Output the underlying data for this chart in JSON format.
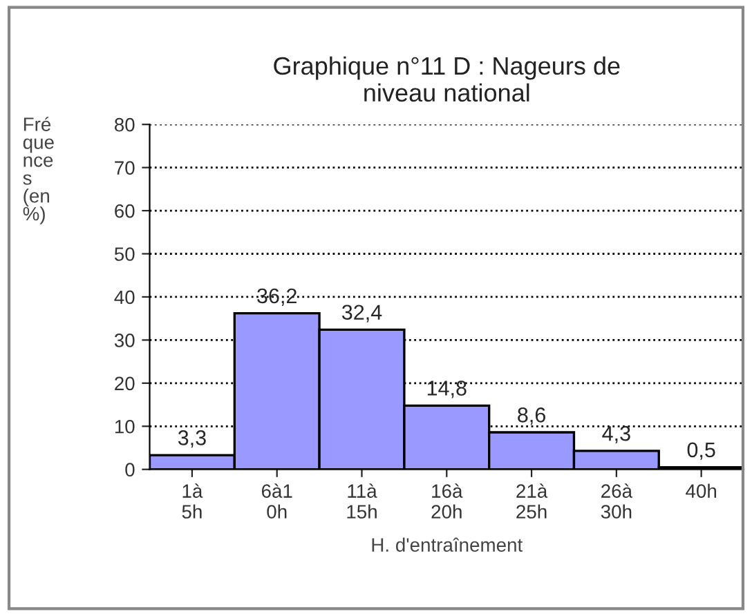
{
  "chart_data": {
    "type": "bar",
    "title": "Graphique n°11 D : Nageurs de\nniveau national",
    "xlabel": "H. d'entraînement",
    "ylabel": "Fré\nque\nnce\ns\n(en\n%)",
    "categories": [
      "1à\n5h",
      "6à1\n0h",
      "11à\n15h",
      "16à\n20h",
      "21à\n25h",
      "26à\n30h",
      "40h"
    ],
    "values": [
      3.3,
      36.2,
      32.4,
      14.8,
      8.6,
      4.3,
      0.5
    ],
    "value_labels": [
      "3,3",
      "36,2",
      "32,4",
      "14,8",
      "8,6",
      "4,3",
      "0,5"
    ],
    "color": "#9999ff",
    "ylim": [
      0,
      80
    ],
    "yticks": [
      0,
      10,
      20,
      30,
      40,
      50,
      60,
      70,
      80
    ],
    "grid": "y"
  }
}
